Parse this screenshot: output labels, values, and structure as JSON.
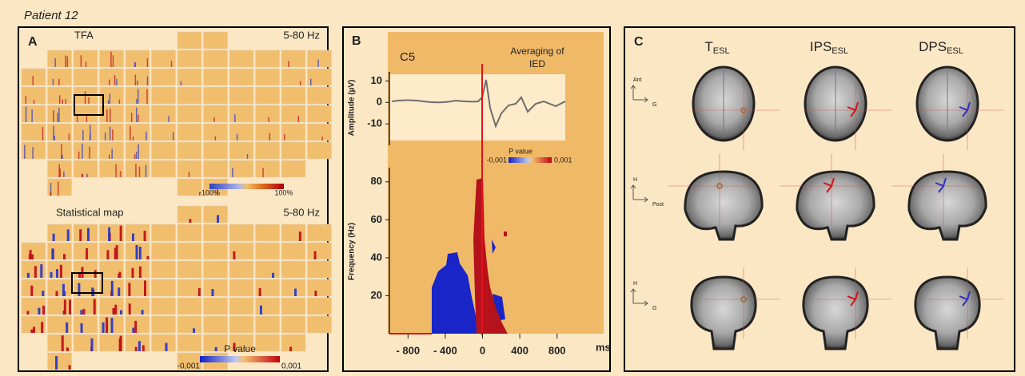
{
  "header": {
    "title": "Patient 12"
  },
  "panel_a": {
    "label": "A",
    "tfa": {
      "title": "TFA",
      "band": "5-80 Hz",
      "colorbar": {
        "min_label": "-100%",
        "max_label": "100%"
      }
    },
    "stat_map": {
      "title": "Statistical map",
      "band": "5-80 Hz",
      "colorbar": {
        "title": "P value",
        "min_label": "-0,001",
        "max_label": "0,001"
      }
    }
  },
  "panel_b": {
    "label": "B",
    "channel": "C5",
    "annotation": [
      "Averaging of",
      "IED"
    ],
    "colorbar": {
      "title": "P value",
      "min_label": "-0,001",
      "max_label": "0,001"
    },
    "x_axis": {
      "label": "ms",
      "lim": [
        -1000,
        1000
      ],
      "ticks": [
        {
          "value": -800,
          "label": "- 800"
        },
        {
          "value": -400,
          "label": "- 400"
        },
        0,
        400,
        800
      ]
    },
    "amplitude_axis": {
      "label": "Amplitude (µV)",
      "lim": [
        -20,
        15
      ],
      "ticks": [
        10,
        0,
        -10
      ]
    },
    "frequency_axis": {
      "label": "Frequency (Hz)",
      "lim": [
        0,
        90
      ],
      "ticks": [
        80,
        60,
        40,
        20
      ]
    }
  },
  "panel_c": {
    "label": "C",
    "columns": [
      {
        "main": "T",
        "sub": "ESL"
      },
      {
        "main": "IPS",
        "sub": "ESL"
      },
      {
        "main": "DPS",
        "sub": "ESL"
      }
    ],
    "orientations": [
      {
        "up": "Ant",
        "right": "G"
      },
      {
        "up": "H",
        "right": "Post"
      },
      {
        "up": "H",
        "right": "G"
      }
    ]
  }
}
